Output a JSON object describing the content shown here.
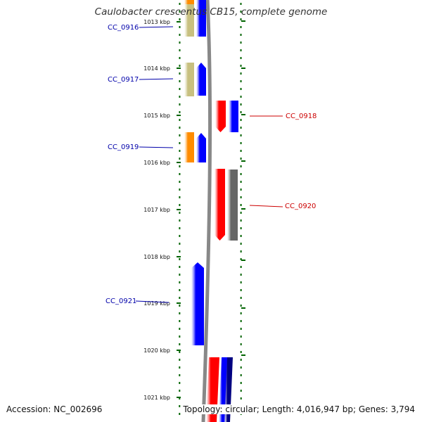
{
  "title": "Caulobacter crescentus CB15, complete genome",
  "footer": {
    "accession": "Accession: NC_002696",
    "summary": "Topology: circular; Length: 4,016,947 bp; Genes: 3,794"
  },
  "scale": {
    "unit": "kbp",
    "ticks": [
      "1013 kbp",
      "1014 kbp",
      "1015 kbp",
      "1016 kbp",
      "1017 kbp",
      "1018 kbp",
      "1019 kbp",
      "1020 kbp",
      "1021 kbp"
    ]
  },
  "colors": {
    "forward": "#0000ff",
    "reverse": "#ff0000",
    "khaki": "#c8c080",
    "orange": "#ff8c00",
    "gray": "#666666",
    "navy": "#000080",
    "tick": "#006400",
    "label_forward": "#0000aa",
    "label_reverse": "#cc0000"
  },
  "genes": [
    {
      "label": "CC_0916",
      "strand": "forward",
      "color_key": "label_forward"
    },
    {
      "label": "CC_0917",
      "strand": "forward",
      "color_key": "label_forward"
    },
    {
      "label": "CC_0918",
      "strand": "reverse",
      "color_key": "label_reverse"
    },
    {
      "label": "CC_0919",
      "strand": "forward",
      "color_key": "label_forward"
    },
    {
      "label": "CC_0920",
      "strand": "reverse",
      "color_key": "label_reverse"
    },
    {
      "label": "CC_0921",
      "strand": "forward",
      "color_key": "label_forward"
    }
  ]
}
